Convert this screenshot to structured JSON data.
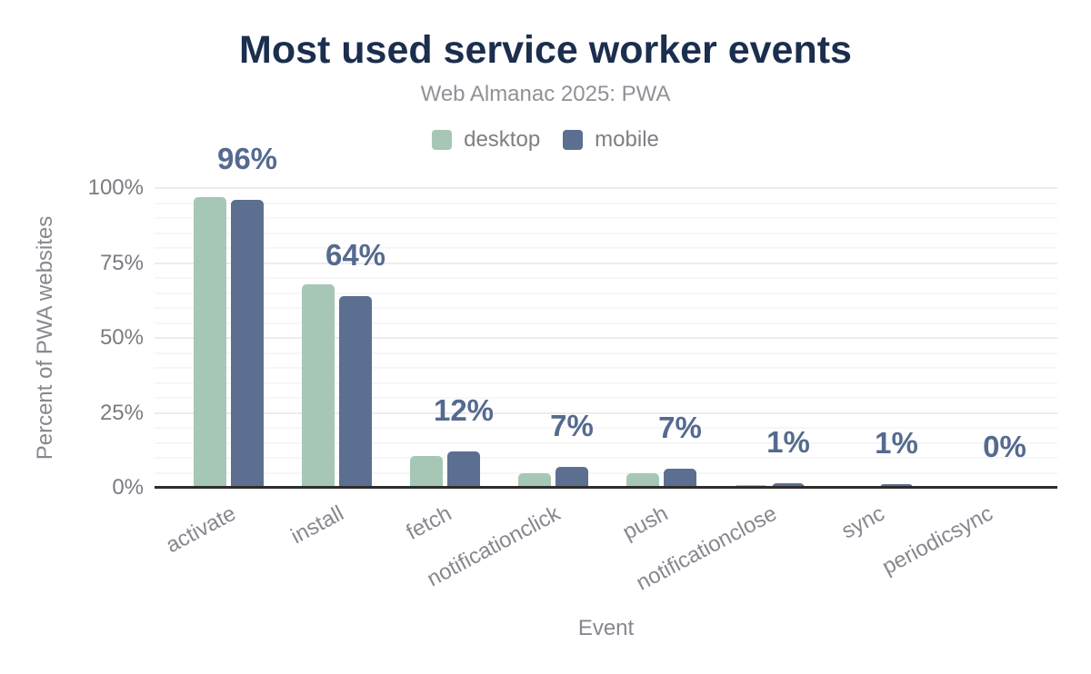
{
  "chart_data": {
    "type": "bar",
    "title": "Most used service worker events",
    "subtitle": "Web Almanac 2025: PWA",
    "xlabel": "Event",
    "ylabel": "Percent of PWA websites",
    "categories": [
      "activate",
      "install",
      "fetch",
      "notificationclick",
      "push",
      "notificationclose",
      "sync",
      "periodicsync"
    ],
    "series": [
      {
        "name": "desktop",
        "color": "#a6c7b5",
        "values": [
          97,
          68,
          10.5,
          5,
          5,
          0.9,
          0.5,
          0
        ]
      },
      {
        "name": "mobile",
        "color": "#5c6f90",
        "values": [
          96,
          64,
          12,
          7,
          6.5,
          1.4,
          1.1,
          0
        ]
      }
    ],
    "bar_labels": [
      "96%",
      "64%",
      "12%",
      "7%",
      "7%",
      "1%",
      "1%",
      "0%"
    ],
    "bar_labels_series": "mobile",
    "yticks": [
      {
        "value": 0,
        "label": "0%"
      },
      {
        "value": 25,
        "label": "25%"
      },
      {
        "value": 50,
        "label": "50%"
      },
      {
        "value": 75,
        "label": "75%"
      },
      {
        "value": 100,
        "label": "100%"
      }
    ],
    "ylim": [
      0,
      100
    ],
    "grid": {
      "minor_step": 5,
      "major_step": 25,
      "on": true
    },
    "legend_position": "top-center"
  },
  "colors": {
    "title": "#1c2e4e",
    "subtitle": "#8f9298",
    "legend_label": "#7d8084",
    "tick_label": "#797c81",
    "axis_title": "#85888e",
    "value_label": "#556a8f",
    "axis_line": "#2d2d2d",
    "grid_major": "#ececec",
    "grid_minor": "#f6f6f6",
    "background": "#ffffff"
  }
}
